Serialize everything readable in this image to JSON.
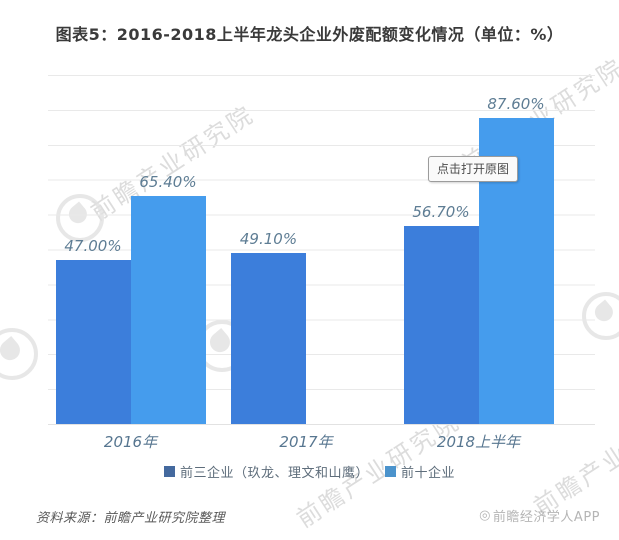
{
  "tooltip": {
    "label": "点击打开原图"
  },
  "watermark": {
    "text": "前瞻产业研究院"
  },
  "legend": {
    "items": [
      {
        "label": "前三企业（玖龙、理文和山鹰）",
        "marker_color": "#44699e"
      },
      {
        "label": "前十企业",
        "marker_color": "#4b93cc"
      }
    ]
  },
  "footer": {
    "source": "资料来源：前瞻产业研究院整理",
    "credit_icon": "◎",
    "credit": "前瞻经济学人APP"
  },
  "chart_data": {
    "type": "bar",
    "title": "图表5：2016-2018上半年龙头企业外废配额变化情况（单位：%）",
    "categories": [
      "2016年",
      "2017年",
      "2018上半年"
    ],
    "series": [
      {
        "name": "前三企业（玖龙、理文和山鹰）",
        "color": "#3c7edb",
        "values": [
          47.0,
          49.1,
          56.7
        ]
      },
      {
        "name": "前十企业",
        "color": "#459ced",
        "values": [
          65.4,
          null,
          87.6
        ]
      }
    ],
    "value_label_suffix": "%",
    "ylim": [
      0,
      100
    ],
    "grid": true,
    "gridline_step_pct": 10,
    "legend_position": "bottom"
  }
}
